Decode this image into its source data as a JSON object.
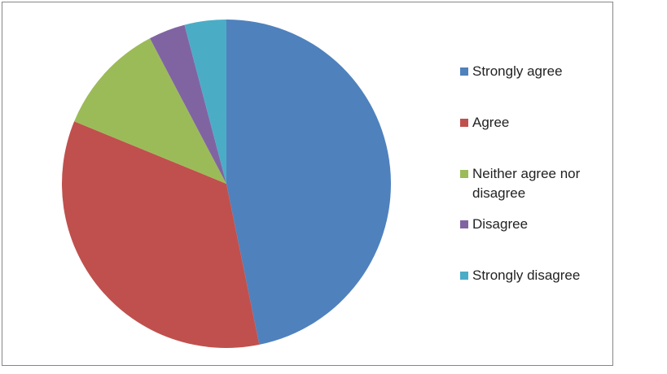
{
  "chart_data": {
    "type": "pie",
    "categories": [
      "Strongly agree",
      "Agree",
      "Neither agree nor disagree",
      "Disagree",
      "Strongly disagree"
    ],
    "values": [
      46.8,
      34.4,
      11.1,
      3.6,
      4.1
    ],
    "colors": [
      "#4f81bd",
      "#c0504d",
      "#9bbb59",
      "#8064a2",
      "#4bacc6"
    ],
    "legend": "right"
  }
}
